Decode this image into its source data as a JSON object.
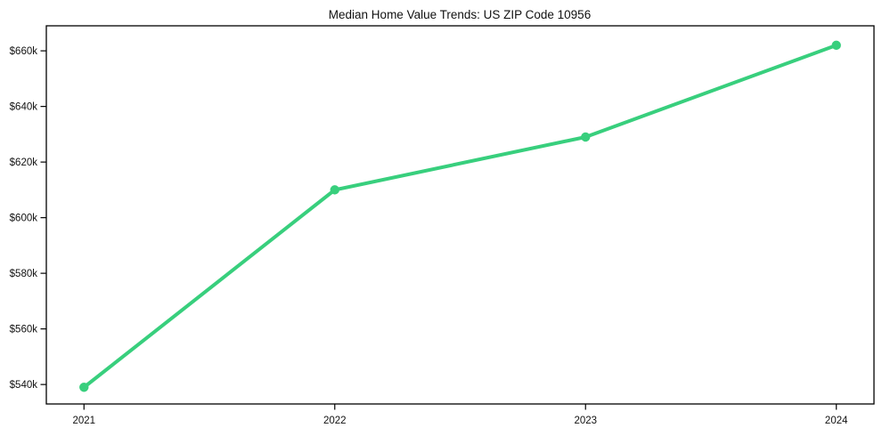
{
  "page": {
    "background": "#ffffff"
  },
  "chart_data": {
    "type": "line",
    "title": "Median Home Value Trends: US ZIP Code 10956",
    "categories": [
      "2021",
      "2022",
      "2023",
      "2024"
    ],
    "series": [
      {
        "name": "Median Home Value",
        "values": [
          539000,
          610000,
          629000,
          662000
        ],
        "color": "#38cf7d"
      }
    ],
    "y_ticks": [
      {
        "value": 540000,
        "label": "$540k"
      },
      {
        "value": 560000,
        "label": "$560k"
      },
      {
        "value": 580000,
        "label": "$580k"
      },
      {
        "value": 600000,
        "label": "$600k"
      },
      {
        "value": 620000,
        "label": "$620k"
      },
      {
        "value": 640000,
        "label": "$640k"
      },
      {
        "value": 660000,
        "label": "$660k"
      }
    ],
    "ylim": [
      533000,
      669000
    ],
    "xlabel": "",
    "ylabel": "",
    "grid": false,
    "legend": "none",
    "marker": "circle",
    "axis_color": "#000000",
    "text_color": "#111111"
  }
}
